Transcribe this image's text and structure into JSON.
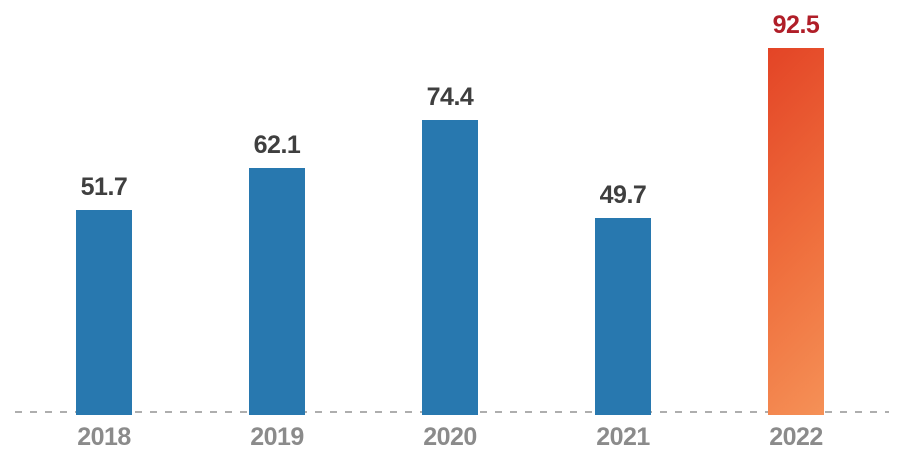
{
  "chart_data": {
    "type": "bar",
    "title": "",
    "xlabel": "",
    "ylabel": "",
    "categories": [
      "2018",
      "2019",
      "2020",
      "2021",
      "2022"
    ],
    "values": [
      51.7,
      62.1,
      74.4,
      49.7,
      92.5
    ],
    "value_labels": [
      "51.7",
      "62.1",
      "74.4",
      "49.7",
      "92.5"
    ],
    "ylim": [
      0,
      100
    ],
    "grid": false,
    "legend": false,
    "highlight_index": 4,
    "baseline_style": "dashed",
    "colors": {
      "bar_default": "#2878af",
      "bar_highlight_gradient_start": "#e34426",
      "bar_highlight_gradient_end": "#f59157",
      "value_label_default": "#3f3f3f",
      "value_label_highlight": "#b01e28",
      "axis_tick_label": "#8b8b8b",
      "baseline": "#aeaeae",
      "background": "#ffffff"
    }
  }
}
